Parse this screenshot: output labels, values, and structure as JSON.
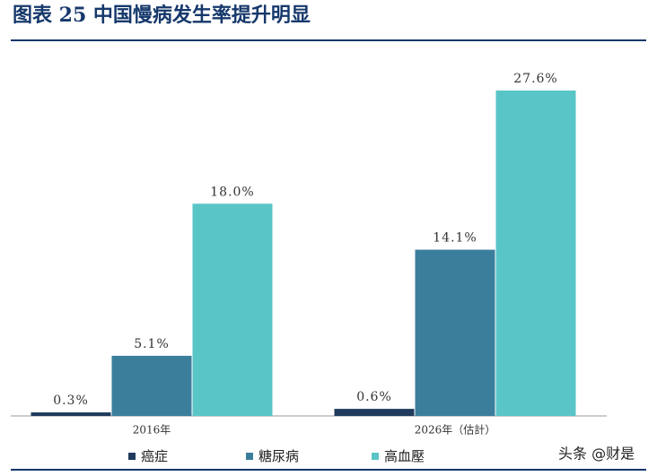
{
  "chart_data": {
    "type": "bar",
    "title": "图表 25  中国慢病发生率提升明显",
    "categories": [
      "2016年",
      "2026年（估計）"
    ],
    "series": [
      {
        "name": "癌症",
        "color": "#1f3a5c",
        "values": [
          0.3,
          0.6
        ],
        "value_labels": [
          "0.3%",
          "0.6%"
        ]
      },
      {
        "name": "糖尿病",
        "color": "#3a7e9c",
        "values": [
          5.1,
          14.1
        ],
        "value_labels": [
          "5.1%",
          "14.1%"
        ]
      },
      {
        "name": "高血壓",
        "color": "#5ac5c7",
        "values": [
          18.0,
          27.6
        ],
        "value_labels": [
          "18.0%",
          "27.6%"
        ]
      }
    ],
    "legend": "bottom"
  },
  "watermark": "头条 @财是"
}
